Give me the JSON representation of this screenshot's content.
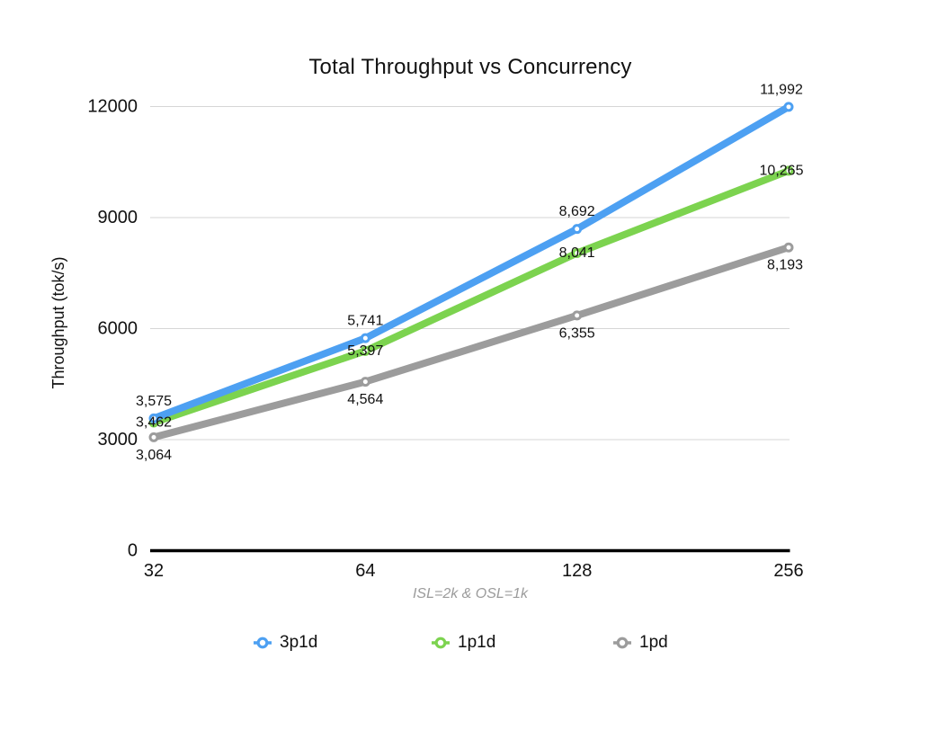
{
  "chart_data": {
    "type": "line",
    "title": "Total Throughput vs Concurrency",
    "subtitle": "ISL=2k & OSL=1k",
    "xlabel": "",
    "ylabel": "Throughput (tok/s)",
    "categories": [
      "32",
      "64",
      "128",
      "256"
    ],
    "series": [
      {
        "name": "3p1d",
        "color": "#4DA0F2",
        "values": [
          3575,
          5741,
          8692,
          11992
        ],
        "point_labels": [
          "3,575",
          "5,741",
          "8,692",
          "11,992"
        ],
        "label_side": "above"
      },
      {
        "name": "1p1d",
        "color": "#7CD34F",
        "values": [
          3462,
          5397,
          8041,
          10265
        ],
        "point_labels": [
          "3,462",
          "5,397",
          "8,041",
          "10,265"
        ],
        "label_side": "center"
      },
      {
        "name": "1pd",
        "color": "#9C9C9C",
        "values": [
          3064,
          4564,
          6355,
          8193
        ],
        "point_labels": [
          "3,064",
          "4,564",
          "6,355",
          "8,193"
        ],
        "label_side": "below"
      }
    ],
    "ylim": [
      0,
      12000
    ],
    "yticks": [
      0,
      3000,
      6000,
      9000,
      12000
    ],
    "ytick_labels": [
      "0",
      "3000",
      "6000",
      "9000",
      "12000"
    ],
    "grid": true,
    "legend_position": "bottom",
    "marker": "open-circle"
  },
  "style": {
    "grid_color": "#D6D6D6",
    "axis_color": "#000000",
    "text_color": "#111111",
    "subtitle_color": "#9B9B9B"
  }
}
